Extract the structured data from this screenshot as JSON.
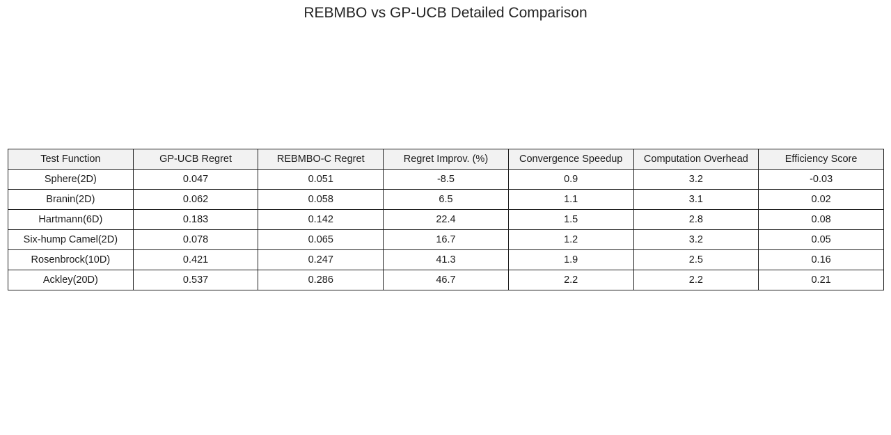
{
  "chart_data": {
    "type": "table",
    "title": "REBMBO vs GP-UCB Detailed Comparison",
    "columns": [
      "Test Function",
      "GP-UCB Regret",
      "REBMBO-C Regret",
      "Regret Improv. (%)",
      "Convergence Speedup",
      "Computation Overhead",
      "Efficiency Score"
    ],
    "rows": [
      [
        "Sphere(2D)",
        "0.047",
        "0.051",
        "-8.5",
        "0.9",
        "3.2",
        "-0.03"
      ],
      [
        "Branin(2D)",
        "0.062",
        "0.058",
        "6.5",
        "1.1",
        "3.1",
        "0.02"
      ],
      [
        "Hartmann(6D)",
        "0.183",
        "0.142",
        "22.4",
        "1.5",
        "2.8",
        "0.08"
      ],
      [
        "Six-hump Camel(2D)",
        "0.078",
        "0.065",
        "16.7",
        "1.2",
        "3.2",
        "0.05"
      ],
      [
        "Rosenbrock(10D)",
        "0.421",
        "0.247",
        "41.3",
        "1.9",
        "2.5",
        "0.16"
      ],
      [
        "Ackley(20D)",
        "0.537",
        "0.286",
        "46.7",
        "2.2",
        "2.2",
        "0.21"
      ]
    ],
    "colors": {
      "header_bg": "#f2f2f2",
      "border": "#1f1f1f",
      "cell_bg": "#ffffff"
    }
  }
}
